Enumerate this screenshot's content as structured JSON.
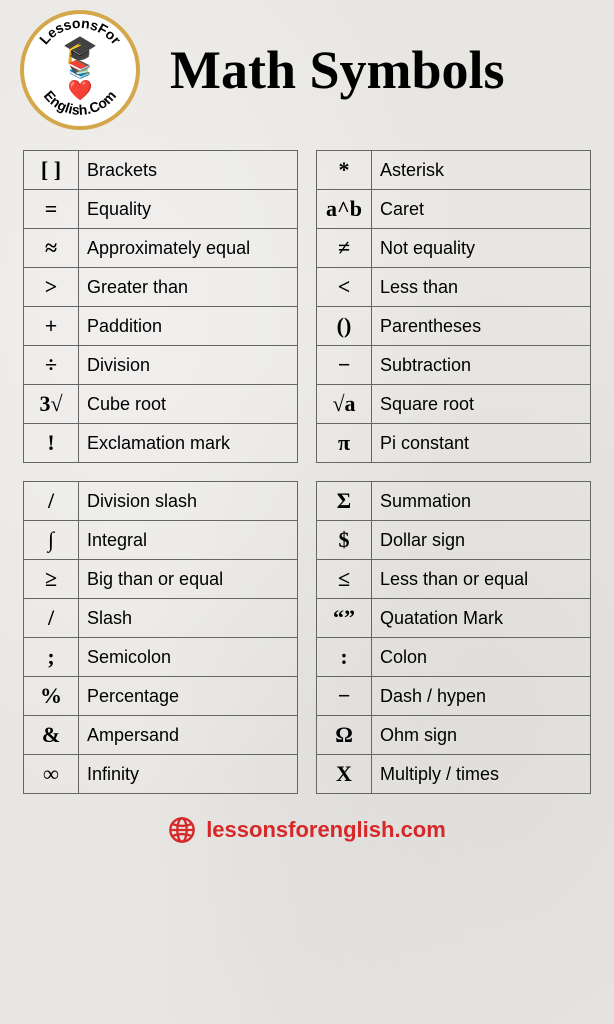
{
  "header": {
    "logo_top": "LessonsFor",
    "logo_top2": "English.Com",
    "title": "Math Symbols"
  },
  "tables": {
    "top_left": [
      {
        "symbol": "[ ]",
        "label": "Brackets"
      },
      {
        "symbol": "=",
        "label": "Equality"
      },
      {
        "symbol": "≈",
        "label": "Approximately equal"
      },
      {
        "symbol": ">",
        "label": "Greater than"
      },
      {
        "symbol": "+",
        "label": "Paddition"
      },
      {
        "symbol": "÷",
        "label": "Division"
      },
      {
        "symbol": "3√",
        "label": "Cube root"
      },
      {
        "symbol": "!",
        "label": "Exclamation mark"
      }
    ],
    "top_right": [
      {
        "symbol": "*",
        "label": "Asterisk"
      },
      {
        "symbol": "a^b",
        "label": "Caret"
      },
      {
        "symbol": "≠",
        "label": "Not equality"
      },
      {
        "symbol": "<",
        "label": "Less than"
      },
      {
        "symbol": "()",
        "label": "Parentheses"
      },
      {
        "symbol": "−",
        "label": "Subtraction"
      },
      {
        "symbol": "√a",
        "label": "Square root"
      },
      {
        "symbol": "π",
        "label": "Pi constant"
      }
    ],
    "bottom_left": [
      {
        "symbol": "/",
        "label": "Division slash"
      },
      {
        "symbol": "∫",
        "label": "Integral"
      },
      {
        "symbol": "≥",
        "label": "Big than or equal"
      },
      {
        "symbol": "/",
        "label": "Slash"
      },
      {
        "symbol": ";",
        "label": "Semicolon"
      },
      {
        "symbol": "%",
        "label": "Percentage"
      },
      {
        "symbol": "&",
        "label": "Ampersand"
      },
      {
        "symbol": "∞",
        "label": "Infinity"
      }
    ],
    "bottom_right": [
      {
        "symbol": "Σ",
        "label": "Summation"
      },
      {
        "symbol": "$",
        "label": "Dollar sign"
      },
      {
        "symbol": "≤",
        "label": "Less than or equal"
      },
      {
        "symbol": "“”",
        "label": "Quatation Mark"
      },
      {
        "symbol": ":",
        "label": "Colon"
      },
      {
        "symbol": "−",
        "label": "Dash / hypen"
      },
      {
        "symbol": "Ω",
        "label": "Ohm sign"
      },
      {
        "symbol": "X",
        "label": "Multiply / times"
      }
    ]
  },
  "footer": {
    "text": "lessonsforenglish.com"
  },
  "colors": {
    "background": "#e8e6e2",
    "border": "#666666",
    "text": "#000000",
    "footer_text": "#d62828",
    "logo_border": "#d4a74a"
  }
}
